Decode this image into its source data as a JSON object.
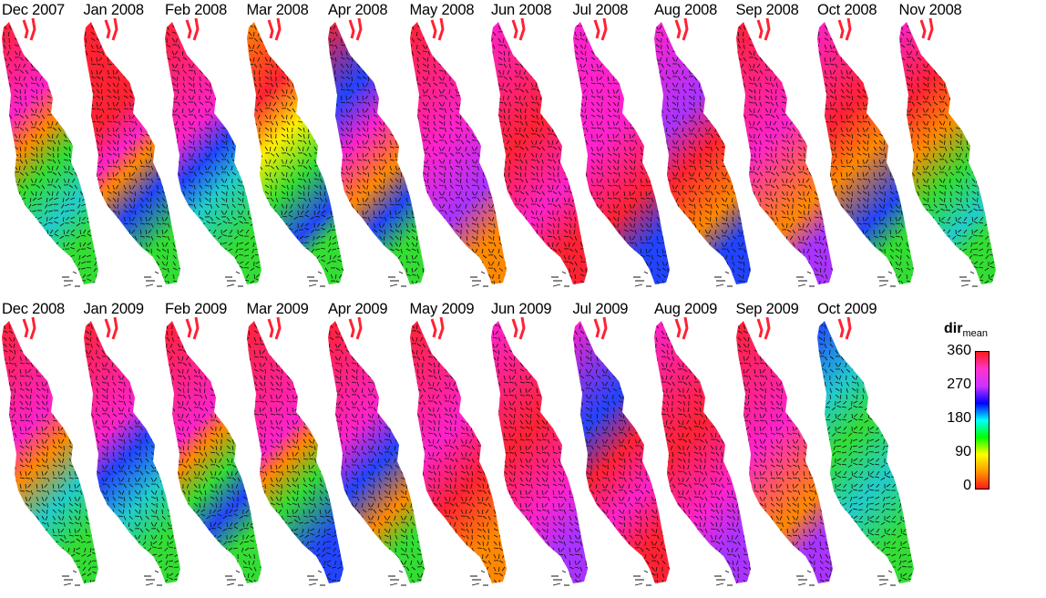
{
  "rows": [
    [
      "Dec 2007",
      "Jan 2008",
      "Feb 2008",
      "Mar 2008",
      "Apr 2008",
      "May 2008",
      "Jun 2008",
      "Jul 2008",
      "Aug 2008",
      "Sep 2008",
      "Oct 2008",
      "Nov 2008"
    ],
    [
      "Dec 2008",
      "Jan 2009",
      "Feb 2009",
      "Mar 2009",
      "Apr 2009",
      "May 2009",
      "Jun 2009",
      "Jul 2009",
      "Aug 2009",
      "Sep 2009",
      "Oct 2009"
    ]
  ],
  "colorbar": {
    "label": "dir",
    "label_sub": "mean",
    "ticks": [
      "360",
      "270",
      "180",
      "90",
      "0"
    ],
    "stops": [
      "#ff1a1a",
      "#ff9900",
      "#ffff00",
      "#00ff00",
      "#00ffff",
      "#0000ff",
      "#cc33ff",
      "#ff33cc",
      "#ff1a1a"
    ]
  },
  "palette": {
    "red": "#ff2233",
    "orange": "#ff8800",
    "yellow": "#ffee00",
    "green": "#33dd33",
    "cyan": "#22cccc",
    "blue": "#2244ff",
    "purple": "#aa33ff",
    "magenta": "#ff22cc"
  }
}
